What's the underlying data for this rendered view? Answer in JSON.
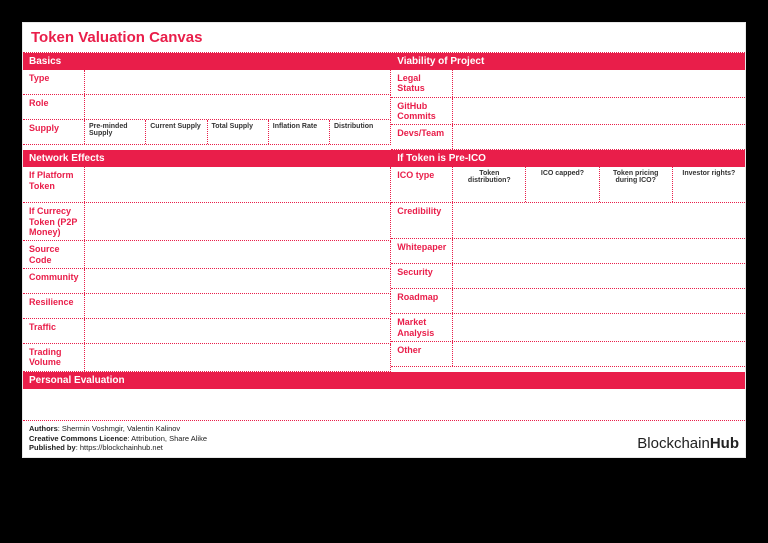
{
  "title": "Token Valuation Canvas",
  "colors": {
    "accent": "#e91e4a",
    "background": "#ffffff",
    "page_bg": "#000000",
    "text": "#333333"
  },
  "sections": {
    "basics": {
      "header": "Basics",
      "rows": {
        "type": "Type",
        "role": "Role",
        "supply": "Supply"
      },
      "supply_cols": [
        "Pre-minded Supply",
        "Current Supply",
        "Total Supply",
        "Inflation Rate",
        "Distribution"
      ]
    },
    "viability": {
      "header": "Viability of Project",
      "rows": {
        "legal_status": "Legal Status",
        "github_commits": "GitHub Commits",
        "devs_team": "Devs/Team"
      }
    },
    "network_effects": {
      "header": "Network Effects",
      "rows": {
        "platform_token": "If Platform Token",
        "currency_token": "If Currecy Token (P2P Money)",
        "source_code": "Source Code",
        "community": "Community",
        "resilience": "Resilience",
        "traffic": "Traffic",
        "trading_volume": "Trading Volume"
      }
    },
    "pre_ico": {
      "header": "If Token is Pre-ICO",
      "rows": {
        "ico_type": "ICO type",
        "credibility": "Credibility",
        "whitepaper": "Whitepaper",
        "security": "Security",
        "roadmap": "Roadmap",
        "market_analysis": "Market Analysis",
        "other": "Other"
      },
      "ico_cols": [
        "Token distribution?",
        "ICO capped?",
        "Token pricing during ICO?",
        "Investor rights?"
      ]
    },
    "personal_eval": {
      "header": "Personal Evaluation"
    }
  },
  "footer": {
    "authors_label": "Authors",
    "authors": ": Shermin Voshmgir, Valentin Kalinov",
    "cc_label": "Creative Commons Licence",
    "cc": ": Attribution, Share Alike",
    "published_label": "Published by",
    "published": ": https://blockchainhub.net",
    "logo_first": "Blockchain",
    "logo_second": "Hub"
  }
}
